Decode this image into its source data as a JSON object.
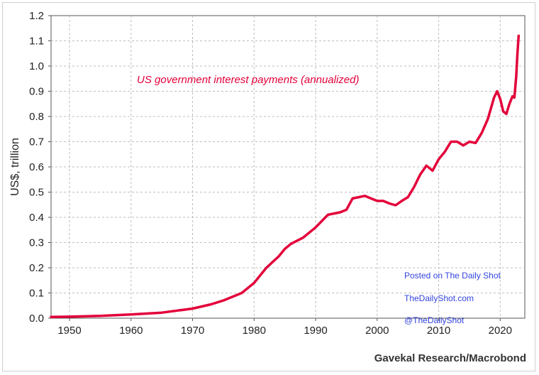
{
  "chart_data": {
    "type": "line",
    "title": "",
    "xlabel": "",
    "ylabel": "US$, trillion",
    "xlim": [
      1947,
      2024
    ],
    "ylim": [
      0.0,
      1.2
    ],
    "x_ticks": [
      "1950",
      "1960",
      "1970",
      "1980",
      "1990",
      "2000",
      "2010",
      "2020"
    ],
    "y_ticks": [
      "0.0",
      "0.1",
      "0.2",
      "0.3",
      "0.4",
      "0.5",
      "0.6",
      "0.7",
      "0.8",
      "0.9",
      "1.0",
      "1.1",
      "1.2"
    ],
    "grid": true,
    "series": [
      {
        "name": "US government interest payments (annualized)",
        "color": "#e3003a",
        "x": [
          1947,
          1950,
          1955,
          1960,
          1965,
          1970,
          1973,
          1975,
          1978,
          1980,
          1982,
          1984,
          1985,
          1986,
          1988,
          1990,
          1992,
          1994,
          1995,
          1996,
          1997,
          1998,
          1999,
          2000,
          2001,
          2002,
          2003,
          2004,
          2005,
          2006,
          2007,
          2008,
          2009,
          2010,
          2011,
          2012,
          2013,
          2014,
          2015,
          2016,
          2017,
          2018,
          2019,
          2019.5,
          2020,
          2020.5,
          2021,
          2021.5,
          2022,
          2022.3,
          2022.6,
          2022.8,
          2023
        ],
        "y": [
          0.005,
          0.006,
          0.009,
          0.015,
          0.022,
          0.038,
          0.055,
          0.07,
          0.1,
          0.14,
          0.2,
          0.245,
          0.275,
          0.295,
          0.32,
          0.36,
          0.41,
          0.42,
          0.43,
          0.475,
          0.48,
          0.485,
          0.475,
          0.465,
          0.465,
          0.455,
          0.448,
          0.465,
          0.48,
          0.52,
          0.57,
          0.605,
          0.585,
          0.63,
          0.66,
          0.7,
          0.7,
          0.685,
          0.7,
          0.695,
          0.735,
          0.79,
          0.875,
          0.9,
          0.87,
          0.82,
          0.81,
          0.85,
          0.88,
          0.875,
          0.96,
          1.05,
          1.12
        ]
      }
    ],
    "annotations": [
      "Posted on The Daily Shot",
      "TheDailyShot.com",
      "@TheDailyShot"
    ],
    "source": "Gavekal Research/Macrobond"
  }
}
